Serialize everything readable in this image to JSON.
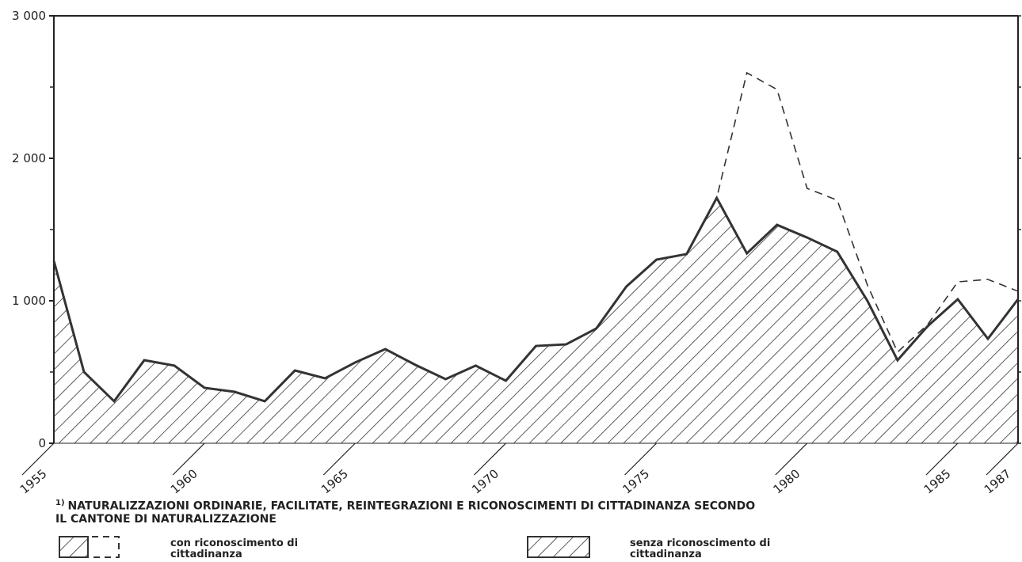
{
  "chart_data": {
    "type": "area",
    "footnote_marker": "1)",
    "footnote": "NATURALIZZAZIONI ORDINARIE, FACILITATE, REINTEGRAZIONI E RICONOSCIMENTI DI CITTADINANZA SECONDO IL CANTONE DI NATURALIZZAZIONE",
    "x": [
      1955,
      1956,
      1957,
      1958,
      1959,
      1960,
      1961,
      1962,
      1963,
      1964,
      1965,
      1966,
      1967,
      1968,
      1969,
      1970,
      1971,
      1972,
      1973,
      1974,
      1975,
      1976,
      1977,
      1978,
      1979,
      1980,
      1981,
      1982,
      1983,
      1984,
      1985,
      1986,
      1987
    ],
    "series": [
      {
        "name": "con riconoscimento di cittadinanza",
        "color": "#333333",
        "style": "dashed",
        "values": [
          1280,
          500,
          295,
          583,
          545,
          389,
          361,
          295,
          511,
          456,
          567,
          661,
          550,
          450,
          545,
          439,
          683,
          694,
          805,
          1100,
          1289,
          1328,
          1722,
          2600,
          2483,
          1789,
          1706,
          1111,
          640,
          833,
          1133,
          1150,
          1067
        ]
      },
      {
        "name": "senza riconoscimento di cittadinanza",
        "color": "#333333",
        "style": "solid",
        "values": [
          1280,
          500,
          295,
          583,
          545,
          389,
          361,
          295,
          511,
          456,
          567,
          661,
          550,
          450,
          545,
          439,
          683,
          694,
          805,
          1100,
          1289,
          1328,
          1722,
          1333,
          1533,
          1444,
          1344,
          1000,
          583,
          822,
          1011,
          733,
          1011
        ]
      }
    ],
    "xlim": [
      1955,
      1987
    ],
    "xticks": [
      1955,
      1960,
      1965,
      1970,
      1975,
      1980,
      1985,
      1987
    ],
    "ylim": [
      0,
      3000
    ],
    "yticks": [
      0,
      {
        "value": 1000,
        "label": "1 000"
      },
      {
        "value": 2000,
        "label": "2 000"
      },
      {
        "value": 3000,
        "label": "3 000"
      }
    ],
    "yminor": [
      500,
      1500,
      2500
    ]
  }
}
